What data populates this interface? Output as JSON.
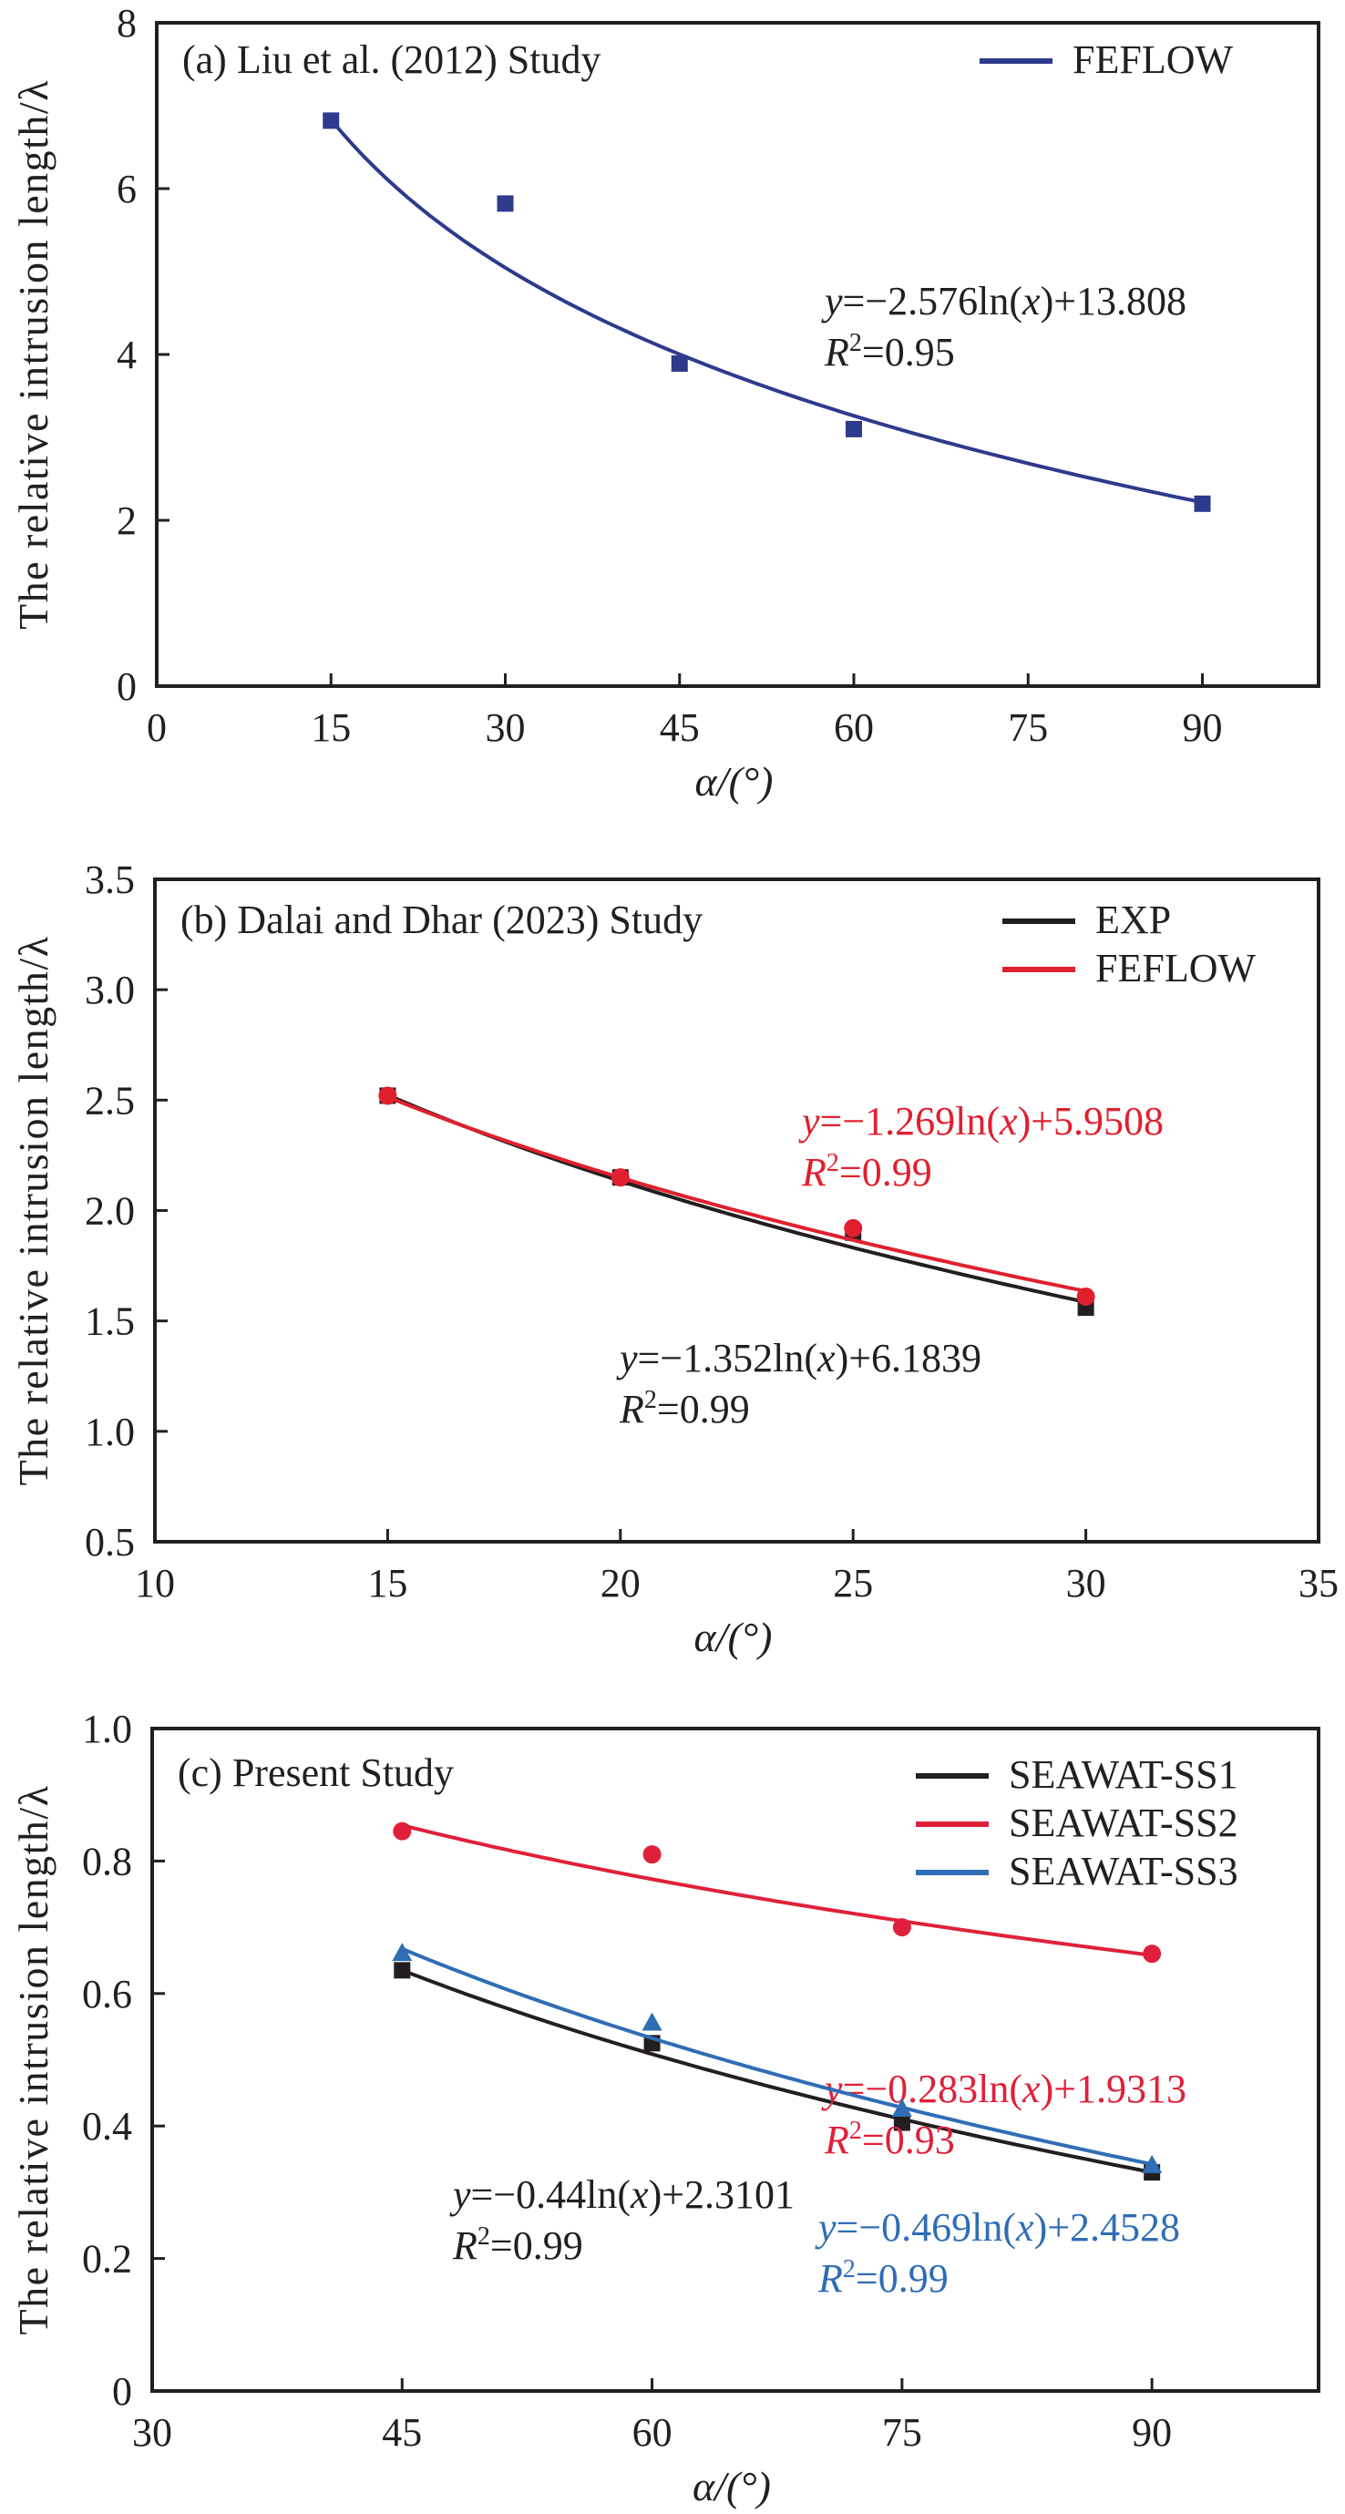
{
  "chart_data": [
    {
      "type": "scatter",
      "panel_id": "a",
      "title": "(a) Liu et al. (2012) Study",
      "xlabel": "α/(°)",
      "ylabel": "The relative intrusion length/λ",
      "xlim": [
        0,
        100
      ],
      "ylim": [
        0,
        8
      ],
      "xticks": [
        0,
        15,
        30,
        45,
        60,
        75,
        90
      ],
      "yticks": [
        0,
        2,
        4,
        6,
        8
      ],
      "xtick_labels": [
        "0",
        "15",
        "30",
        "45",
        "60",
        "75",
        "90"
      ],
      "ytick_labels": [
        "0",
        "2",
        "4",
        "6",
        "8"
      ],
      "grid": false,
      "legend_position": "top-right",
      "series": [
        {
          "name": "FEFLOW",
          "color": "#2e3a8c",
          "marker": "square",
          "x": [
            15,
            30,
            45,
            60,
            90
          ],
          "y": [
            6.82,
            5.82,
            3.89,
            3.1,
            2.2
          ],
          "fit": {
            "type": "log",
            "a": -2.576,
            "b": 13.808,
            "x_range": [
              15,
              90
            ]
          },
          "equation": {
            "prefix": "y",
            "body": "=−2.576ln(",
            "var": "x",
            "tail": ")+13.808",
            "r2_label": "R",
            "r2_sup": "2",
            "r2_value": "=0.95"
          }
        }
      ]
    },
    {
      "type": "scatter",
      "panel_id": "b",
      "title": "(b) Dalai and Dhar (2023) Study",
      "xlabel": "α/(°)",
      "ylabel": "The relative intrusion length/λ",
      "xlim": [
        10,
        35
      ],
      "ylim": [
        0.5,
        3.5
      ],
      "xticks": [
        10,
        15,
        20,
        25,
        30,
        35
      ],
      "yticks": [
        0.5,
        1.0,
        1.5,
        2.0,
        2.5,
        3.0,
        3.5
      ],
      "xtick_labels": [
        "10",
        "15",
        "20",
        "25",
        "30",
        "35"
      ],
      "ytick_labels": [
        "0.5",
        "1.0",
        "1.5",
        "2.0",
        "2.5",
        "3.0",
        "3.5"
      ],
      "grid": false,
      "legend_position": "top-right",
      "series": [
        {
          "name": "EXP",
          "color": "#231f20",
          "marker": "square",
          "x": [
            15,
            20,
            25,
            30
          ],
          "y": [
            2.52,
            2.15,
            1.9,
            1.56
          ],
          "fit": {
            "type": "log",
            "a": -1.352,
            "b": 6.1839,
            "x_range": [
              15,
              30
            ]
          },
          "equation": {
            "prefix": "y",
            "body": "=−1.352ln(",
            "var": "x",
            "tail": ")+6.1839",
            "r2_label": "R",
            "r2_sup": "2",
            "r2_value": "=0.99"
          }
        },
        {
          "name": "FEFLOW",
          "color": "#e0202e",
          "marker": "circle",
          "x": [
            15,
            20,
            25,
            30
          ],
          "y": [
            2.52,
            2.15,
            1.92,
            1.61
          ],
          "fit": {
            "type": "log",
            "a": -1.269,
            "b": 5.9508,
            "x_range": [
              15,
              30
            ]
          },
          "equation": {
            "prefix": "y",
            "body": "=−1.269ln(",
            "var": "x",
            "tail": ")+5.9508",
            "r2_label": "R",
            "r2_sup": "2",
            "r2_value": "=0.99"
          }
        }
      ]
    },
    {
      "type": "scatter",
      "panel_id": "c",
      "title": "(c) Present Study",
      "xlabel": "α/(°)",
      "ylabel": "The relative intrusion length/λ",
      "xlim": [
        30,
        100
      ],
      "ylim": [
        0,
        1.0
      ],
      "xticks": [
        30,
        45,
        60,
        75,
        90
      ],
      "yticks": [
        0,
        0.2,
        0.4,
        0.6,
        0.8,
        1.0
      ],
      "xtick_labels": [
        "30",
        "45",
        "60",
        "75",
        "90"
      ],
      "ytick_labels": [
        "0",
        "0.2",
        "0.4",
        "0.6",
        "0.8",
        "1.0"
      ],
      "grid": false,
      "legend_position": "top-right",
      "series": [
        {
          "name": "SEAWAT-SS1",
          "color": "#231f20",
          "marker": "square",
          "x": [
            45,
            60,
            75,
            90
          ],
          "y": [
            0.635,
            0.525,
            0.405,
            0.33
          ],
          "fit": {
            "type": "log",
            "a": -0.44,
            "b": 2.3101,
            "x_range": [
              45,
              90
            ]
          },
          "equation": {
            "prefix": "y",
            "body": "=−0.44ln(",
            "var": "x",
            "tail": ")+2.3101",
            "r2_label": "R",
            "r2_sup": "2",
            "r2_value": "=0.99"
          }
        },
        {
          "name": "SEAWAT-SS2",
          "color": "#e0203a",
          "marker": "circle",
          "x": [
            45,
            60,
            75,
            90
          ],
          "y": [
            0.845,
            0.81,
            0.7,
            0.66
          ],
          "fit": {
            "type": "log",
            "a": -0.283,
            "b": 1.9313,
            "x_range": [
              45,
              90
            ]
          },
          "equation": {
            "prefix": "y",
            "body": "=−0.283ln(",
            "var": "x",
            "tail": ")+1.9313",
            "r2_label": "R",
            "r2_sup": "2",
            "r2_value": "=0.93"
          }
        },
        {
          "name": "SEAWAT-SS3",
          "color": "#2f6db5",
          "marker": "triangle",
          "x": [
            45,
            60,
            75,
            90
          ],
          "y": [
            0.66,
            0.555,
            0.425,
            0.34
          ],
          "fit": {
            "type": "log",
            "a": -0.469,
            "b": 2.4528,
            "x_range": [
              45,
              90
            ]
          },
          "equation": {
            "prefix": "y",
            "body": "=−0.469ln(",
            "var": "x",
            "tail": ")+2.4528",
            "r2_label": "R",
            "r2_sup": "2",
            "r2_value": "=0.99"
          }
        }
      ]
    }
  ]
}
